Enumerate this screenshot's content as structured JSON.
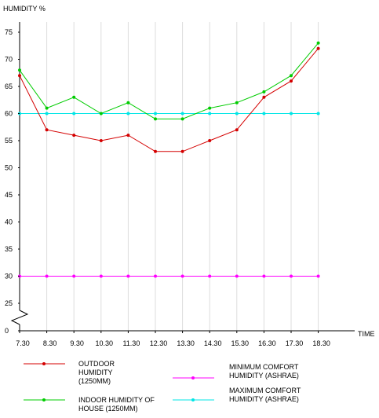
{
  "chart_data": {
    "type": "line",
    "ylabel": "HUMIDITY %",
    "xlabel": "TIME",
    "y_ticks": [
      "75",
      "70",
      "65",
      "60",
      "55",
      "50",
      "45",
      "40",
      "35",
      "30",
      "25",
      "0"
    ],
    "y_axis_break": true,
    "grid": {
      "x": true,
      "y": false
    },
    "categories": [
      "7.30",
      "8.30",
      "9.30",
      "10.30",
      "11.30",
      "12.30",
      "13.30",
      "14.30",
      "15.30",
      "16.30",
      "17.30",
      "18.30"
    ],
    "series": [
      {
        "name": "OUTDOOR HUMIDITY (1250MM)",
        "color": "#d40000",
        "values": [
          67,
          57,
          56,
          55,
          56,
          53,
          53,
          55,
          57,
          63,
          66,
          72
        ]
      },
      {
        "name": "INDOOR HUMIDITY OF HOUSE (1250MM)",
        "color": "#00cc00",
        "values": [
          68,
          61,
          63,
          60,
          62,
          59,
          59,
          61,
          62,
          64,
          67,
          73
        ]
      },
      {
        "name": "MINIMUM COMFORT HUMIDITY (ASHRAE)",
        "color": "#ff00ff",
        "values": [
          30,
          30,
          30,
          30,
          30,
          30,
          30,
          30,
          30,
          30,
          30,
          30
        ]
      },
      {
        "name": "MAXIMUM COMFORT HUMIDITY (ASHRAE)",
        "color": "#00e6e6",
        "values": [
          60,
          60,
          60,
          60,
          60,
          60,
          60,
          60,
          60,
          60,
          60,
          60
        ]
      }
    ],
    "legend": [
      {
        "lines": [
          "OUTDOOR",
          "HUMIDITY",
          "(1250MM)"
        ],
        "series": 0
      },
      {
        "lines": [
          "INDOOR HUMIDITY OF",
          "HOUSE (1250MM)"
        ],
        "series": 1
      },
      {
        "lines": [
          "MINIMUM COMFORT",
          "HUMIDITY (ASHRAE)"
        ],
        "series": 2
      },
      {
        "lines": [
          "MAXIMUM COMFORT",
          "HUMIDITY (ASHRAE)"
        ],
        "series": 3
      }
    ]
  }
}
